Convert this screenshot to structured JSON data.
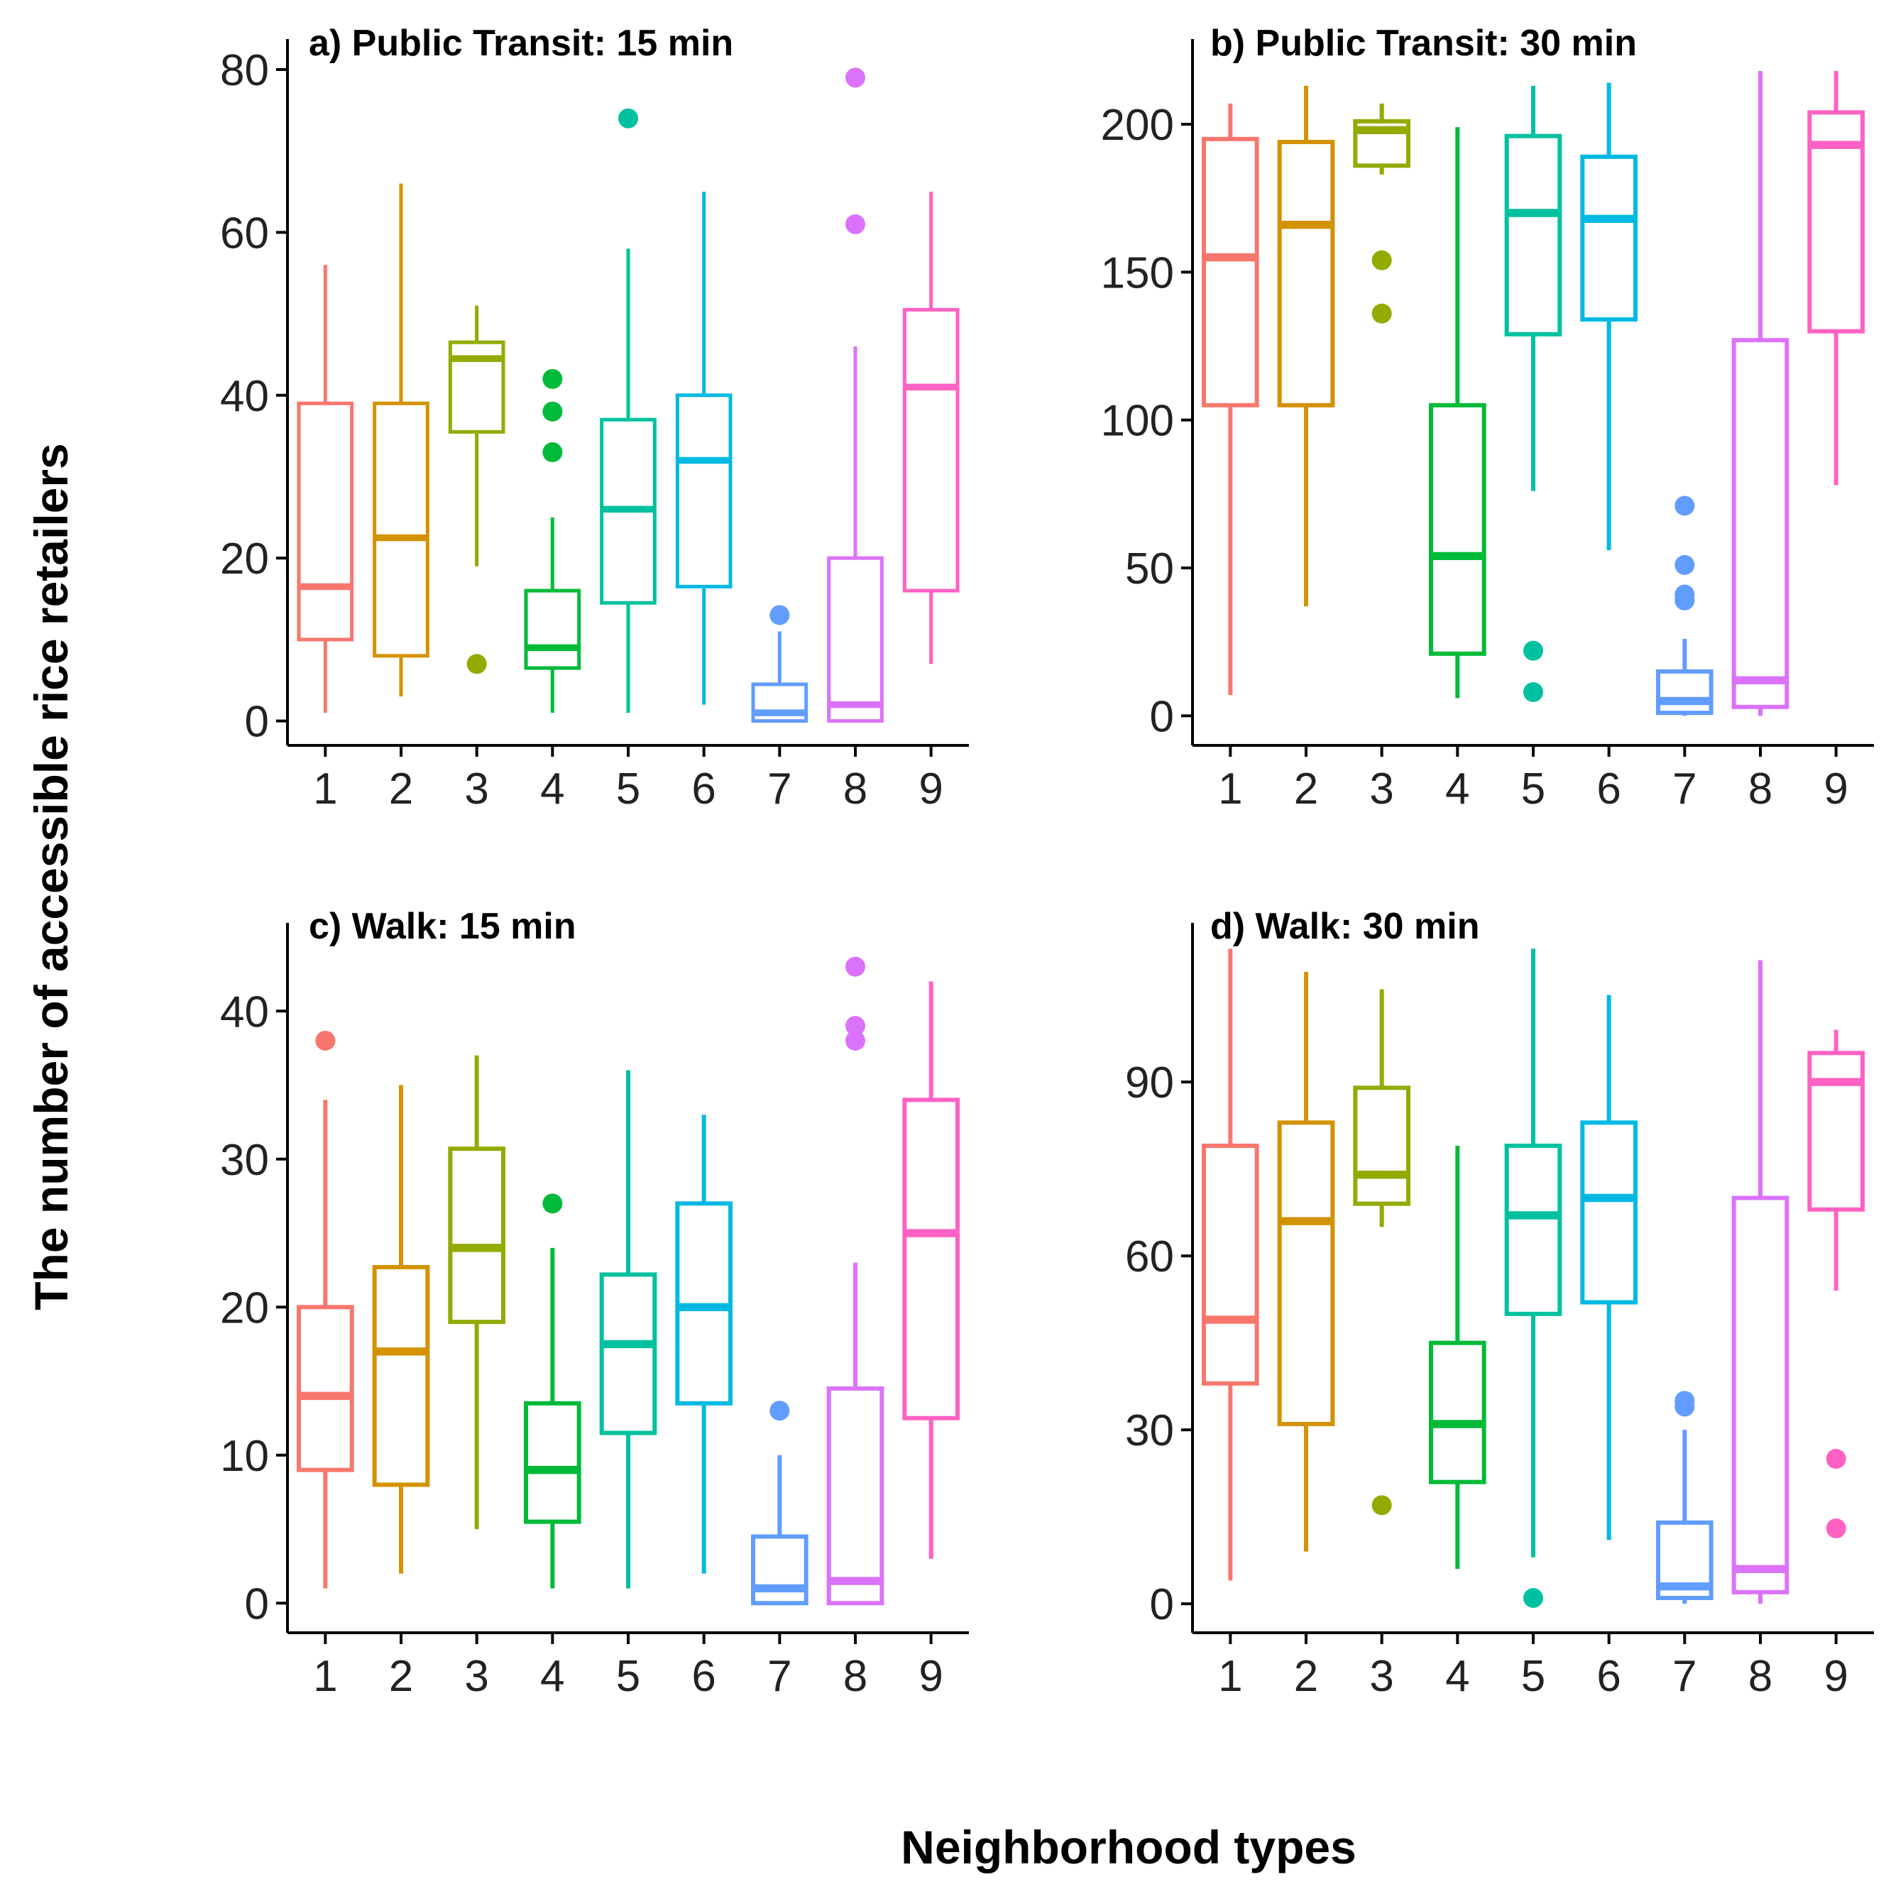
{
  "chart_data": {
    "type": "boxplot",
    "xlabel": "Neighborhood types",
    "ylabel": "The number of accessible rice retailers",
    "categories": [
      "1",
      "2",
      "3",
      "4",
      "5",
      "6",
      "7",
      "8",
      "9"
    ],
    "colors": [
      "#F8766D",
      "#D39200",
      "#93AA00",
      "#00BA38",
      "#00C19F",
      "#00B9E3",
      "#619CFF",
      "#DB72FB",
      "#FF61C3"
    ],
    "panels": [
      {
        "title": "a) Public Transit: 15 min",
        "ylim": [
          -3,
          82
        ],
        "yticks": [
          0,
          20,
          40,
          60,
          80
        ],
        "boxes": [
          {
            "category": "1",
            "whisker_low": 1,
            "q1": 10,
            "median": 16.5,
            "q3": 39,
            "whisker_high": 56,
            "outliers": []
          },
          {
            "category": "2",
            "whisker_low": 3,
            "q1": 8,
            "median": 22.5,
            "q3": 39,
            "whisker_high": 66,
            "outliers": []
          },
          {
            "category": "3",
            "whisker_low": 19,
            "q1": 35.5,
            "median": 44.5,
            "q3": 46.5,
            "whisker_high": 51,
            "outliers": [
              7
            ]
          },
          {
            "category": "4",
            "whisker_low": 1,
            "q1": 6.5,
            "median": 9,
            "q3": 16,
            "whisker_high": 25,
            "outliers": [
              33,
              38,
              42
            ]
          },
          {
            "category": "5",
            "whisker_low": 1,
            "q1": 14.5,
            "median": 26,
            "q3": 37,
            "whisker_high": 58,
            "outliers": [
              74
            ]
          },
          {
            "category": "6",
            "whisker_low": 2,
            "q1": 16.5,
            "median": 32,
            "q3": 40,
            "whisker_high": 65,
            "outliers": []
          },
          {
            "category": "7",
            "whisker_low": 0,
            "q1": 0,
            "median": 1,
            "q3": 4.5,
            "whisker_high": 11,
            "outliers": [
              13
            ]
          },
          {
            "category": "8",
            "whisker_low": 0,
            "q1": 0,
            "median": 2,
            "q3": 20,
            "whisker_high": 46,
            "outliers": [
              61,
              79
            ]
          },
          {
            "category": "9",
            "whisker_low": 7,
            "q1": 16,
            "median": 41,
            "q3": 50.5,
            "whisker_high": 65,
            "outliers": []
          }
        ]
      },
      {
        "title": "b) Public Transit: 30 min",
        "ylim": [
          -10,
          224
        ],
        "yticks": [
          0,
          50,
          100,
          150,
          200
        ],
        "boxes": [
          {
            "category": "1",
            "whisker_low": 7,
            "q1": 105,
            "median": 155,
            "q3": 195,
            "whisker_high": 207,
            "outliers": []
          },
          {
            "category": "2",
            "whisker_low": 37,
            "q1": 105,
            "median": 166,
            "q3": 194,
            "whisker_high": 213,
            "outliers": []
          },
          {
            "category": "3",
            "whisker_low": 183,
            "q1": 186,
            "median": 198,
            "q3": 201,
            "whisker_high": 207,
            "outliers": [
              136,
              154
            ]
          },
          {
            "category": "4",
            "whisker_low": 6,
            "q1": 21,
            "median": 54,
            "q3": 105,
            "whisker_high": 199,
            "outliers": []
          },
          {
            "category": "5",
            "whisker_low": 76,
            "q1": 129,
            "median": 170,
            "q3": 196,
            "whisker_high": 213,
            "outliers": [
              8,
              22
            ]
          },
          {
            "category": "6",
            "whisker_low": 56,
            "q1": 134,
            "median": 168,
            "q3": 189,
            "whisker_high": 214,
            "outliers": []
          },
          {
            "category": "7",
            "whisker_low": 0,
            "q1": 1,
            "median": 5,
            "q3": 15,
            "whisker_high": 26,
            "outliers": [
              39,
              41,
              51,
              71
            ]
          },
          {
            "category": "8",
            "whisker_low": 0,
            "q1": 3,
            "median": 12,
            "q3": 127,
            "whisker_high": 218,
            "outliers": []
          },
          {
            "category": "9",
            "whisker_low": 78,
            "q1": 130,
            "median": 193,
            "q3": 204,
            "whisker_high": 218,
            "outliers": []
          }
        ]
      },
      {
        "title": "c) Walk: 15 min",
        "ylim": [
          -2,
          45
        ],
        "yticks": [
          0,
          10,
          20,
          30,
          40
        ],
        "boxes": [
          {
            "category": "1",
            "whisker_low": 1,
            "q1": 9,
            "median": 14,
            "q3": 20,
            "whisker_high": 34,
            "outliers": [
              38
            ]
          },
          {
            "category": "2",
            "whisker_low": 2,
            "q1": 8,
            "median": 17,
            "q3": 22.7,
            "whisker_high": 35,
            "outliers": []
          },
          {
            "category": "3",
            "whisker_low": 5,
            "q1": 19,
            "median": 24,
            "q3": 30.7,
            "whisker_high": 37,
            "outliers": []
          },
          {
            "category": "4",
            "whisker_low": 1,
            "q1": 5.5,
            "median": 9,
            "q3": 13.5,
            "whisker_high": 24,
            "outliers": [
              27
            ]
          },
          {
            "category": "5",
            "whisker_low": 1,
            "q1": 11.5,
            "median": 17.5,
            "q3": 22.2,
            "whisker_high": 36,
            "outliers": []
          },
          {
            "category": "6",
            "whisker_low": 2,
            "q1": 13.5,
            "median": 20,
            "q3": 27,
            "whisker_high": 33,
            "outliers": []
          },
          {
            "category": "7",
            "whisker_low": 0,
            "q1": 0,
            "median": 1,
            "q3": 4.5,
            "whisker_high": 10,
            "outliers": [
              13
            ]
          },
          {
            "category": "8",
            "whisker_low": 0,
            "q1": 0,
            "median": 1.5,
            "q3": 14.5,
            "whisker_high": 23,
            "outliers": [
              38,
              39,
              43
            ]
          },
          {
            "category": "9",
            "whisker_low": 3,
            "q1": 12.5,
            "median": 25,
            "q3": 34,
            "whisker_high": 42,
            "outliers": []
          }
        ]
      },
      {
        "title": "d) Walk: 30 min",
        "ylim": [
          -5,
          115
        ],
        "yticks": [
          0,
          30,
          60,
          90
        ],
        "boxes": [
          {
            "category": "1",
            "whisker_low": 4,
            "q1": 38,
            "median": 49,
            "q3": 79,
            "whisker_high": 113,
            "outliers": []
          },
          {
            "category": "2",
            "whisker_low": 9,
            "q1": 31,
            "median": 66,
            "q3": 83,
            "whisker_high": 109,
            "outliers": []
          },
          {
            "category": "3",
            "whisker_low": 65,
            "q1": 69,
            "median": 74,
            "q3": 89,
            "whisker_high": 106,
            "outliers": [
              17
            ]
          },
          {
            "category": "4",
            "whisker_low": 6,
            "q1": 21,
            "median": 31,
            "q3": 45,
            "whisker_high": 79,
            "outliers": []
          },
          {
            "category": "5",
            "whisker_low": 8,
            "q1": 50,
            "median": 67,
            "q3": 79,
            "whisker_high": 113,
            "outliers": [
              1
            ]
          },
          {
            "category": "6",
            "whisker_low": 11,
            "q1": 52,
            "median": 70,
            "q3": 83,
            "whisker_high": 105,
            "outliers": []
          },
          {
            "category": "7",
            "whisker_low": 0,
            "q1": 1,
            "median": 3,
            "q3": 14,
            "whisker_high": 30,
            "outliers": [
              34,
              35
            ]
          },
          {
            "category": "8",
            "whisker_low": 0,
            "q1": 2,
            "median": 6,
            "q3": 70,
            "whisker_high": 111,
            "outliers": []
          },
          {
            "category": "9",
            "whisker_low": 54,
            "q1": 68,
            "median": 90,
            "q3": 95,
            "whisker_high": 99,
            "outliers": [
              13,
              25
            ]
          }
        ]
      }
    ]
  }
}
